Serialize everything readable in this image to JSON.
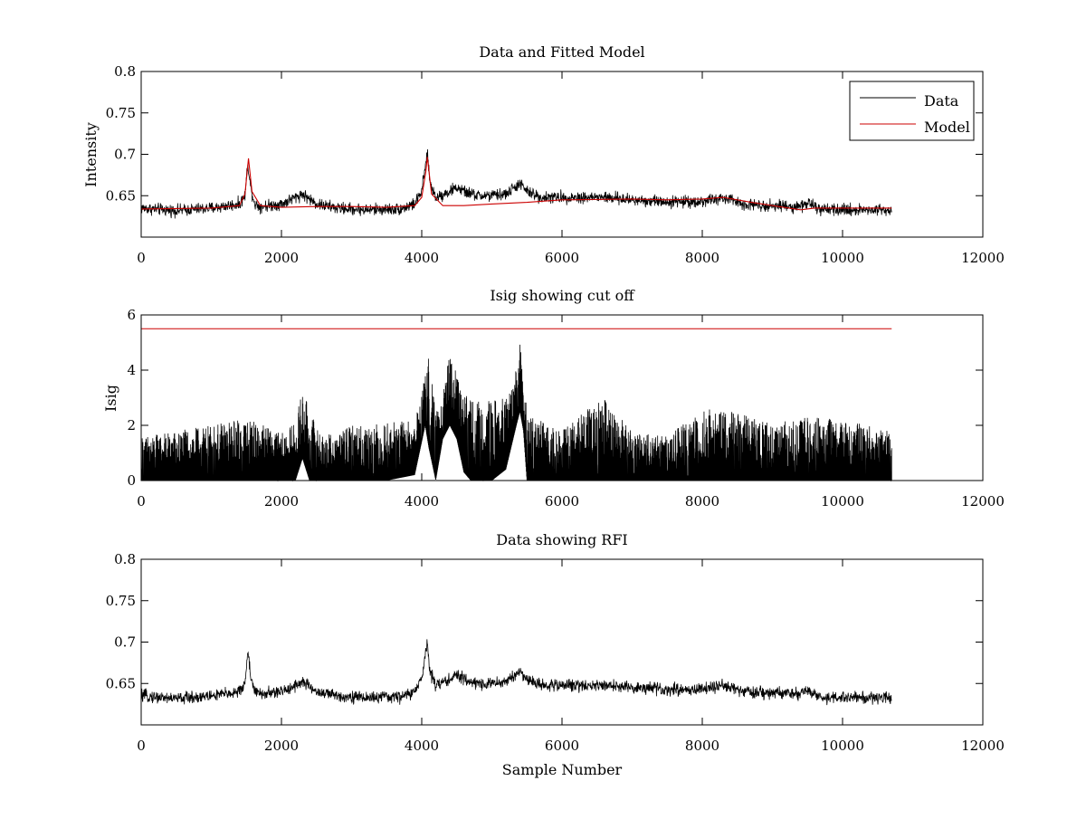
{
  "colors": {
    "data": "#000000",
    "model": "#cc0000",
    "background": "#ffffff"
  },
  "chart_data": [
    {
      "type": "line",
      "title": "Data and Fitted Model",
      "xlabel": "",
      "ylabel": "Intensity",
      "xlim": [
        0,
        12000
      ],
      "ylim": [
        0.6,
        0.8
      ],
      "xticks": [
        0,
        2000,
        4000,
        6000,
        8000,
        10000,
        12000
      ],
      "yticks": [
        0.65,
        0.7,
        0.75,
        0.8
      ],
      "legend": {
        "placement": "top-right",
        "entries": [
          "Data",
          "Model"
        ]
      },
      "grid": false,
      "series": [
        {
          "name": "Data",
          "color": "black",
          "noise": 0.006,
          "x": [
            0,
            500,
            1000,
            1400,
            1480,
            1520,
            1560,
            1620,
            1700,
            2000,
            2300,
            2500,
            2800,
            3200,
            3700,
            3900,
            4000,
            4060,
            4080,
            4120,
            4200,
            4400,
            4500,
            4600,
            4800,
            5000,
            5200,
            5400,
            5500,
            5700,
            6000,
            6600,
            7000,
            7500,
            8000,
            8300,
            8600,
            9000,
            9400,
            9500,
            9700,
            10000,
            10400,
            10700
          ],
          "y": [
            0.635,
            0.632,
            0.635,
            0.64,
            0.65,
            0.69,
            0.66,
            0.64,
            0.637,
            0.64,
            0.652,
            0.64,
            0.635,
            0.633,
            0.634,
            0.64,
            0.655,
            0.69,
            0.7,
            0.665,
            0.648,
            0.655,
            0.66,
            0.655,
            0.65,
            0.65,
            0.652,
            0.665,
            0.655,
            0.648,
            0.648,
            0.648,
            0.645,
            0.643,
            0.643,
            0.647,
            0.64,
            0.638,
            0.637,
            0.642,
            0.632,
            0.633,
            0.633,
            0.633
          ]
        },
        {
          "name": "Model",
          "color": "red",
          "noise": 0,
          "x": [
            0,
            1000,
            1400,
            1480,
            1530,
            1580,
            1700,
            2000,
            2500,
            3000,
            3500,
            3900,
            4000,
            4060,
            4080,
            4140,
            4300,
            4600,
            5000,
            5500,
            6000,
            7000,
            7500,
            8000,
            8300,
            8700,
            9000,
            9400,
            9600,
            10000,
            10700
          ],
          "y": [
            0.634,
            0.635,
            0.638,
            0.652,
            0.695,
            0.655,
            0.638,
            0.636,
            0.637,
            0.637,
            0.636,
            0.638,
            0.648,
            0.68,
            0.697,
            0.652,
            0.638,
            0.638,
            0.64,
            0.642,
            0.645,
            0.646,
            0.645,
            0.646,
            0.648,
            0.642,
            0.638,
            0.633,
            0.635,
            0.635,
            0.635
          ]
        }
      ]
    },
    {
      "type": "line",
      "title": "Isig showing cut off",
      "xlabel": "",
      "ylabel": "Isig",
      "xlim": [
        0,
        12000
      ],
      "ylim": [
        0,
        6
      ],
      "xticks": [
        0,
        2000,
        4000,
        6000,
        8000,
        10000,
        12000
      ],
      "yticks": [
        0,
        2,
        4,
        6
      ],
      "grid": false,
      "series": [
        {
          "name": "Isig",
          "color": "black",
          "fill_to_zero": true,
          "x": [
            0,
            1000,
            1500,
            2000,
            2200,
            2300,
            2400,
            2600,
            3000,
            3500,
            3900,
            4050,
            4100,
            4200,
            4300,
            4400,
            4500,
            4600,
            4700,
            5000,
            5200,
            5350,
            5400,
            5450,
            5500,
            5600,
            6000,
            6600,
            7000,
            7500,
            8000,
            8500,
            9000,
            9500,
            10000,
            10700
          ],
          "upper": [
            1.6,
            2.0,
            2.3,
            1.7,
            2.1,
            3.4,
            2.5,
            1.6,
            2.0,
            2.1,
            2.2,
            3.8,
            4.6,
            2.4,
            3.7,
            4.5,
            4.0,
            3.2,
            2.9,
            2.9,
            3.0,
            4.1,
            5.0,
            4.5,
            2.2,
            2.3,
            1.8,
            3.1,
            1.8,
            1.6,
            2.6,
            2.5,
            2.1,
            2.3,
            2.2,
            1.8
          ],
          "lower": [
            0,
            0,
            0,
            0,
            0,
            0.8,
            0,
            0,
            0,
            0,
            0.2,
            2.0,
            1.2,
            0,
            1.5,
            2.0,
            1.5,
            0.3,
            0,
            0,
            0.4,
            2.0,
            2.5,
            1.8,
            0,
            0,
            0,
            0,
            0,
            0,
            0,
            0,
            0,
            0,
            0,
            0
          ]
        },
        {
          "name": "cut off",
          "color": "red",
          "x": [
            0,
            10700
          ],
          "y": [
            5.5,
            5.5
          ]
        }
      ]
    },
    {
      "type": "line",
      "title": "Data showing RFI",
      "xlabel": "Sample Number",
      "ylabel": "",
      "xlim": [
        0,
        12000
      ],
      "ylim": [
        0.6,
        0.8
      ],
      "xticks": [
        0,
        2000,
        4000,
        6000,
        8000,
        10000,
        12000
      ],
      "yticks": [
        0.65,
        0.7,
        0.75,
        0.8
      ],
      "grid": false,
      "series": [
        {
          "name": "Data",
          "color": "black",
          "noise": 0.006,
          "x": [
            0,
            500,
            1000,
            1400,
            1480,
            1520,
            1560,
            1620,
            1700,
            2000,
            2300,
            2500,
            2800,
            3200,
            3700,
            3900,
            4000,
            4060,
            4080,
            4120,
            4200,
            4400,
            4500,
            4600,
            4800,
            5000,
            5200,
            5400,
            5500,
            5700,
            6000,
            6600,
            7000,
            7500,
            8000,
            8300,
            8600,
            9000,
            9400,
            9500,
            9700,
            10000,
            10400,
            10700
          ],
          "y": [
            0.635,
            0.632,
            0.635,
            0.64,
            0.65,
            0.69,
            0.66,
            0.64,
            0.637,
            0.64,
            0.652,
            0.64,
            0.635,
            0.633,
            0.634,
            0.64,
            0.655,
            0.69,
            0.7,
            0.665,
            0.648,
            0.655,
            0.66,
            0.655,
            0.65,
            0.65,
            0.652,
            0.665,
            0.655,
            0.648,
            0.648,
            0.648,
            0.645,
            0.643,
            0.643,
            0.647,
            0.64,
            0.638,
            0.637,
            0.642,
            0.632,
            0.633,
            0.633,
            0.633
          ]
        }
      ]
    }
  ]
}
